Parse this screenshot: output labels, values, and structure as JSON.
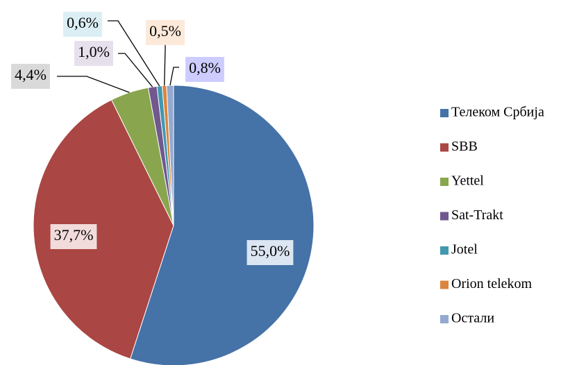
{
  "chart_data": {
    "type": "pie",
    "categories": [
      "Телеком Србија",
      "SBB",
      "Yettel",
      "Sat-Trakt",
      "Jotel",
      "Orion telekom",
      "Остали"
    ],
    "values": [
      55.0,
      37.7,
      4.4,
      1.0,
      0.6,
      0.5,
      0.8
    ],
    "value_labels": [
      "55,0%",
      "37,7%",
      "4,4%",
      "1,0%",
      "0,6%",
      "0,5%",
      "0,8%"
    ],
    "colors": [
      "#4572A7",
      "#AA4643",
      "#89A54E",
      "#71588F",
      "#4198AF",
      "#DB843D",
      "#93A9CF"
    ],
    "legend": "right"
  }
}
